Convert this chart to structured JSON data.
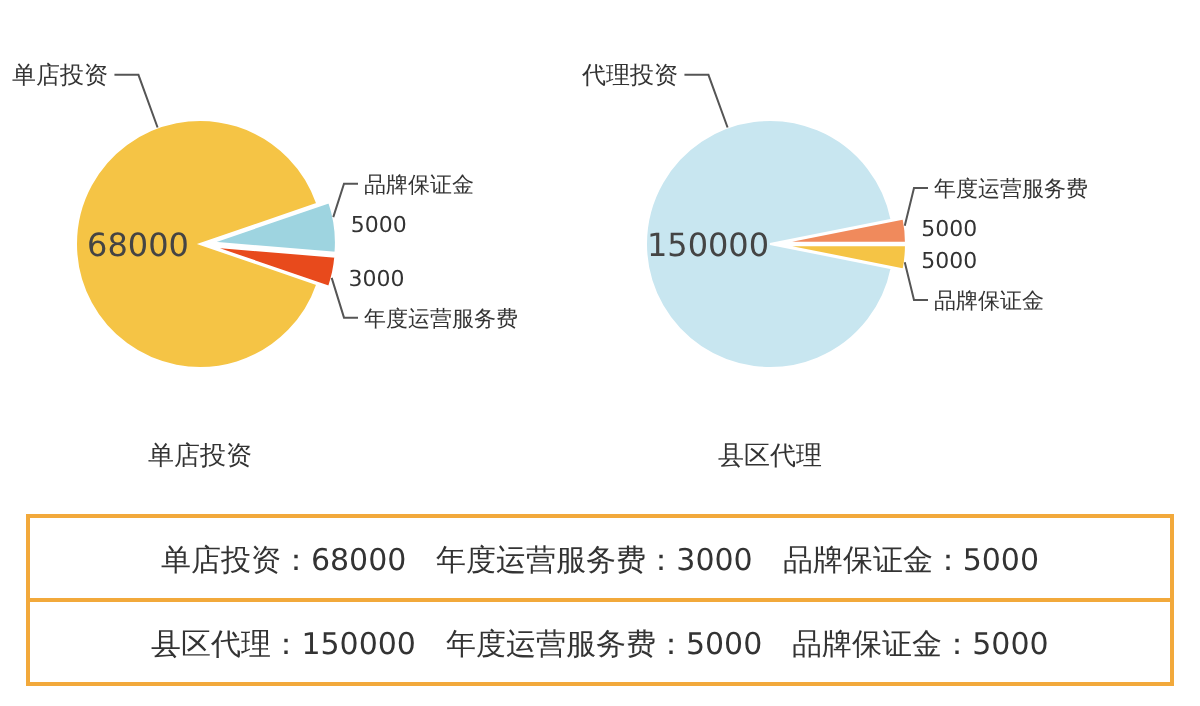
{
  "chart_data": [
    {
      "type": "pie",
      "title": "单店投资",
      "categories": [
        "品牌保证金",
        "年度运营服务费",
        "单店投资"
      ],
      "values": [
        5000,
        3000,
        68000
      ],
      "colors": [
        "#9ed4e0",
        "#e84a1c",
        "#f5c445"
      ],
      "data_labels": true,
      "annotations": [
        "单店投资：68000　年度运营服务费：3000　品牌保证金：5000"
      ]
    },
    {
      "type": "pie",
      "title": "县区代理",
      "categories": [
        "年度运营服务费",
        "品牌保证金",
        "代理投资"
      ],
      "values": [
        5000,
        5000,
        150000
      ],
      "colors": [
        "#f08a5c",
        "#f5c445",
        "#c8e6f0"
      ],
      "data_labels": true,
      "annotations": [
        "县区代理：150000　年度运营服务费：5000　品牌保证金：5000"
      ]
    }
  ]
}
